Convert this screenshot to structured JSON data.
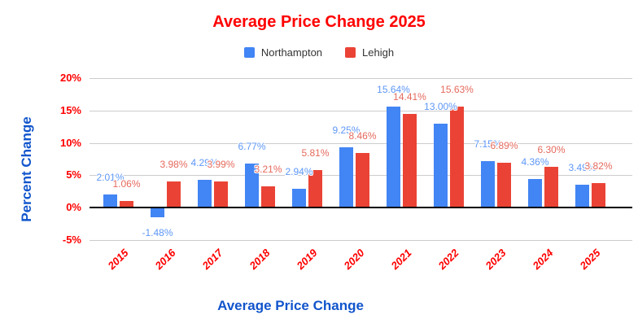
{
  "colors": {
    "background": "#ffffff",
    "title_red": "#ff0000",
    "axis_title_blue": "#1155cc",
    "tick_red": "#ff0000",
    "gridline": "#cccccc",
    "zero_axis": "#000000",
    "legend_text": "#333333"
  },
  "chart_data": {
    "type": "bar",
    "title": "Average Price Change 2025",
    "xlabel": "Average Price Change",
    "ylabel": "Percent Change",
    "categories": [
      "2015",
      "2016",
      "2017",
      "2018",
      "2019",
      "2020",
      "2021",
      "2022",
      "2023",
      "2024",
      "2025"
    ],
    "series": [
      {
        "name": "Northampton",
        "color": "#4285f4",
        "label_color": "#5e97f6",
        "values": [
          2.01,
          -1.48,
          4.29,
          6.77,
          2.94,
          9.25,
          15.64,
          13.0,
          7.15,
          4.36,
          3.49
        ]
      },
      {
        "name": "Lehigh",
        "color": "#ea4335",
        "label_color": "#e56a5d",
        "values": [
          1.06,
          3.98,
          3.99,
          3.21,
          5.81,
          8.46,
          14.41,
          15.63,
          6.89,
          6.3,
          3.82
        ]
      }
    ],
    "ylim": [
      -5,
      20
    ],
    "yticks": [
      {
        "label": "20%",
        "value": 20
      },
      {
        "label": "15%",
        "value": 15
      },
      {
        "label": "10%",
        "value": 10
      },
      {
        "label": "5%",
        "value": 5
      },
      {
        "label": "0%",
        "value": 0
      },
      {
        "label": "-5%",
        "value": -5
      }
    ],
    "grid": true,
    "legend_position": "top",
    "label_format": "percent-2dp"
  }
}
